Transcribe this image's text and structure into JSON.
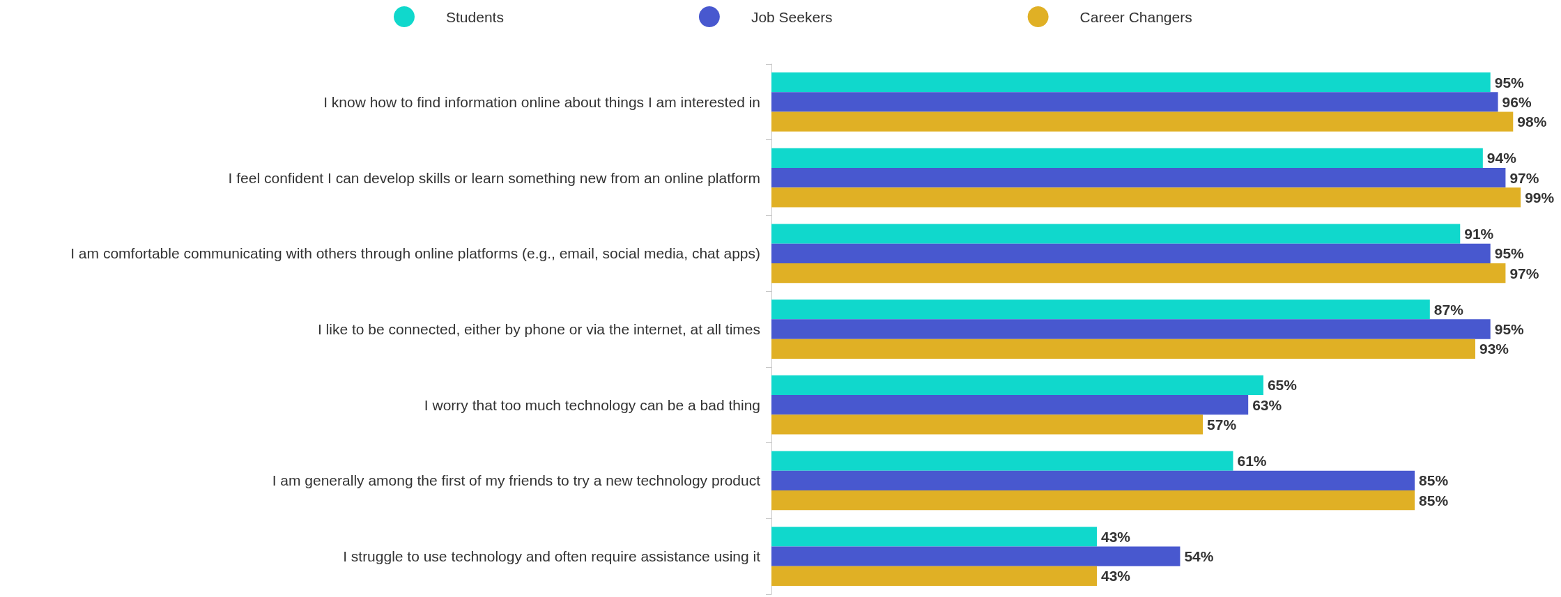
{
  "chart_data": {
    "type": "bar",
    "orientation": "horizontal",
    "legend": "top",
    "grid": false,
    "categories": [
      "I know how to find information online about things I am interested in",
      "I feel confident I can develop skills or learn something new from an online platform",
      "I am comfortable communicating with others through online platforms (e.g., email, social media, chat apps)",
      "I like to be connected, either by phone or via the internet, at all times",
      "I worry that too much technology can be a bad thing",
      "I am generally among the first of my friends to try a new technology product",
      "I struggle to use technology and often require assistance using it"
    ],
    "series": [
      {
        "name": "Students",
        "color": "#10d8cc",
        "values": [
          95,
          94,
          91,
          87,
          65,
          61,
          43
        ],
        "value_labels": [
          "95%",
          "94%",
          "91%",
          "87%",
          "65%",
          "61%",
          "43%"
        ]
      },
      {
        "name": "Job Seekers",
        "color": "#4858cf",
        "values": [
          96,
          97,
          95,
          95,
          63,
          85,
          54
        ],
        "value_labels": [
          "96%",
          "97%",
          "95%",
          "95%",
          "63%",
          "85%",
          "54%"
        ]
      },
      {
        "name": "Career Changers",
        "color": "#e0b025",
        "values": [
          98,
          99,
          97,
          93,
          57,
          85,
          43
        ],
        "value_labels": [
          "98%",
          "99%",
          "97%",
          "93%",
          "57%",
          "85%",
          "43%"
        ]
      }
    ]
  }
}
